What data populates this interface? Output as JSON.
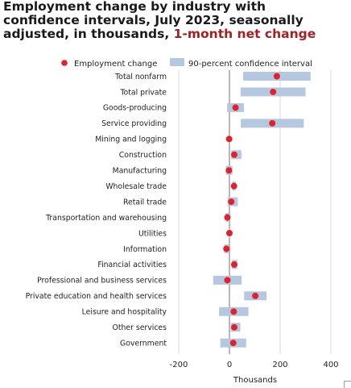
{
  "title": {
    "main": "Employment change by industry with confidence intervals, July 2023, seasonally adjusted, in thousands, ",
    "highlight": "1-month net change"
  },
  "legend": {
    "point_label": "Employment change",
    "interval_label": "90-percent confidence interval"
  },
  "colors": {
    "point": "#e2212b",
    "interval": "#b4c8e0",
    "title_highlight": "#a32121",
    "gridline": "#d8d8d8",
    "zero_line": "#888888"
  },
  "chart_data": {
    "type": "scatter",
    "orientation": "horizontal",
    "title": "Employment change by industry with confidence intervals, July 2023, seasonally adjusted, in thousands, 1-month net change",
    "xlabel": "Thousands",
    "ylabel": "",
    "xlim": [
      -200,
      400
    ],
    "xticks": [
      -200,
      0,
      200,
      400
    ],
    "grid": true,
    "legend_position": "top",
    "categories": [
      "Total nonfarm",
      "Total private",
      "Goods-producing",
      "Service providing",
      "Mining and logging",
      "Construction",
      "Manufacturing",
      "Wholesale trade",
      "Retail trade",
      "Transportation and warehousing",
      "Utilities",
      "Information",
      "Financial activities",
      "Professional and business services",
      "Private education and health services",
      "Leisure and hospitality",
      "Other services",
      "Government"
    ],
    "series": [
      {
        "name": "Employment change",
        "values": [
          187,
          172,
          24,
          169,
          -1,
          19,
          -2,
          18,
          7,
          -8,
          0,
          -12,
          19,
          -8,
          102,
          17,
          19,
          15
        ]
      },
      {
        "name": "90-percent confidence interval",
        "low": [
          54,
          44,
          -9,
          45,
          -3,
          7,
          -14,
          11,
          -7,
          -15,
          -2,
          -20,
          9,
          -64,
          58,
          -41,
          5,
          -36
        ],
        "high": [
          320,
          300,
          57,
          293,
          1,
          47,
          12,
          25,
          33,
          0,
          2,
          -4,
          31,
          48,
          146,
          75,
          43,
          66
        ]
      }
    ]
  }
}
